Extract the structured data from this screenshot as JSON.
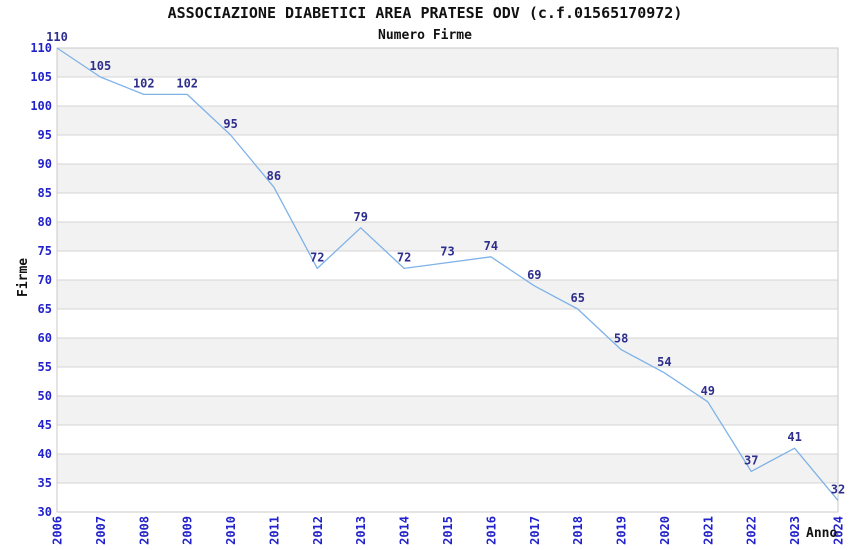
{
  "chart_data": {
    "type": "line",
    "title": "ASSOCIAZIONE DIABETICI AREA PRATESE ODV (c.f.01565170972)",
    "subtitle": "Numero Firme",
    "xlabel": "Anno",
    "ylabel": "Firme",
    "x": [
      2006,
      2007,
      2008,
      2009,
      2010,
      2011,
      2012,
      2013,
      2014,
      2015,
      2016,
      2017,
      2018,
      2019,
      2020,
      2021,
      2022,
      2023,
      2024
    ],
    "values": [
      110,
      105,
      102,
      102,
      95,
      86,
      72,
      79,
      72,
      73,
      74,
      69,
      65,
      58,
      54,
      49,
      37,
      41,
      32
    ],
    "ylim": [
      30,
      110
    ],
    "ytick_step": 5,
    "grid": true,
    "banding": "alternating horizontal bands, gray topmost",
    "legend": "none",
    "colors": {
      "line": "#7fb2e8",
      "point_label": "#2e2e8e",
      "tick_label": "#2222cc",
      "band_gray": "#f2f2f2",
      "band_white": "#ffffff",
      "gridline": "#d4d4d4",
      "plot_border": "#c9c9c9",
      "text": "#111111"
    }
  }
}
